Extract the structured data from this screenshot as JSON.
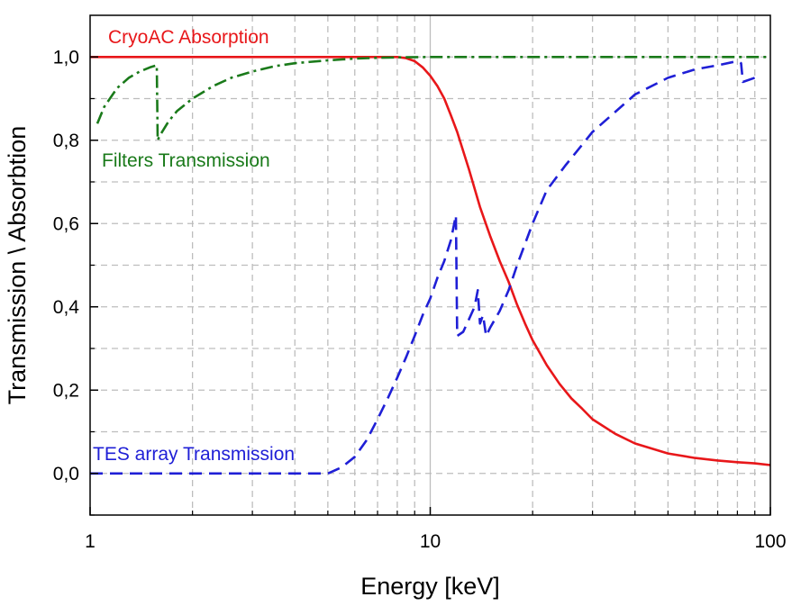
{
  "chart_data": {
    "type": "line",
    "title": "",
    "xlabel": "Energy [keV]",
    "ylabel": "Transmission \\ Absorbtion",
    "xscale": "log",
    "xlim": [
      1,
      100
    ],
    "ylim": [
      -0.1,
      1.1
    ],
    "x_ticks": [
      1,
      10,
      100
    ],
    "x_tick_labels": [
      "1",
      "10",
      "100"
    ],
    "y_ticks": [
      0.0,
      0.2,
      0.4,
      0.6,
      0.8,
      1.0
    ],
    "y_tick_labels": [
      "0,0",
      "0,2",
      "0,4",
      "0,6",
      "0,8",
      "1,0"
    ],
    "grid": true,
    "series": [
      {
        "name": "CryoAC Absorption",
        "color": "#e8171a",
        "style": "solid",
        "x": [
          1,
          2,
          4,
          6,
          7,
          8,
          8.5,
          9,
          9.5,
          10,
          10.5,
          11,
          11.5,
          12,
          13,
          14,
          15,
          16,
          17,
          18,
          19,
          20,
          22,
          24,
          26,
          28,
          30,
          35,
          40,
          50,
          60,
          70,
          80,
          90,
          100
        ],
        "y": [
          1.0,
          1.0,
          1.0,
          1.0,
          1.0,
          1.0,
          0.997,
          0.99,
          0.975,
          0.955,
          0.93,
          0.9,
          0.86,
          0.82,
          0.73,
          0.64,
          0.57,
          0.51,
          0.46,
          0.405,
          0.36,
          0.32,
          0.26,
          0.215,
          0.18,
          0.155,
          0.13,
          0.095,
          0.072,
          0.048,
          0.037,
          0.031,
          0.027,
          0.024,
          0.02
        ]
      },
      {
        "name": "Filters Transmission",
        "color": "#1a7a1a",
        "style": "dashdot",
        "x": [
          1.05,
          1.1,
          1.2,
          1.3,
          1.4,
          1.5,
          1.57,
          1.58,
          1.6,
          1.7,
          1.8,
          2.0,
          2.3,
          2.6,
          3.0,
          3.5,
          4.0,
          5.0,
          6.0,
          7.0,
          8.0,
          10,
          20,
          50,
          100
        ],
        "y": [
          0.84,
          0.88,
          0.925,
          0.95,
          0.965,
          0.975,
          0.98,
          0.8,
          0.81,
          0.845,
          0.87,
          0.9,
          0.93,
          0.95,
          0.965,
          0.978,
          0.985,
          0.992,
          0.996,
          0.998,
          0.999,
          1.0,
          1.0,
          1.0,
          1.0
        ]
      },
      {
        "name": "TES array Transmission",
        "color": "#1f1fd6",
        "style": "dashed",
        "x": [
          1,
          2,
          3,
          4,
          5,
          5.5,
          6,
          6.5,
          7,
          7.5,
          8,
          8.5,
          9,
          9.5,
          10,
          10.5,
          11,
          11.5,
          11.9,
          12.0,
          12.5,
          13,
          13.5,
          13.8,
          14.0,
          14.3,
          14.6,
          15,
          16,
          17,
          18,
          20,
          22,
          25,
          30,
          40,
          50,
          60,
          70,
          80,
          82,
          83,
          90
        ],
        "y": [
          0.0,
          0.0,
          0.0,
          0.0,
          0.0,
          0.015,
          0.04,
          0.08,
          0.13,
          0.18,
          0.23,
          0.28,
          0.33,
          0.38,
          0.42,
          0.47,
          0.51,
          0.56,
          0.62,
          0.33,
          0.34,
          0.37,
          0.4,
          0.44,
          0.36,
          0.38,
          0.33,
          0.35,
          0.39,
          0.44,
          0.5,
          0.6,
          0.68,
          0.74,
          0.82,
          0.91,
          0.95,
          0.97,
          0.98,
          0.99,
          0.985,
          0.94,
          0.95
        ]
      }
    ],
    "annotations": [
      {
        "text": "CryoAC Absorption",
        "series": "CryoAC Absorption"
      },
      {
        "text": "Filters Transmission",
        "series": "Filters Transmission"
      },
      {
        "text": "TES array Transmission",
        "series": "TES array Transmission"
      }
    ]
  }
}
